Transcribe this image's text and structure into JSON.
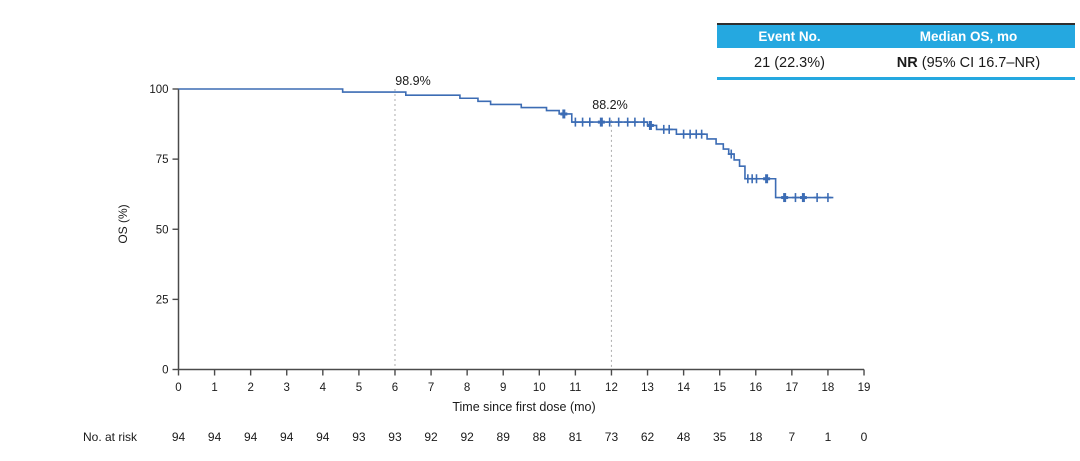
{
  "table": {
    "headers": [
      "Event No.",
      "Median OS, mo"
    ],
    "row": {
      "event_no": "21 (22.3%)",
      "median_os_prefix": "NR",
      "median_os_rest": " (95% CI 16.7–NR)"
    },
    "header_bg": "#25A8E0"
  },
  "chart_data": {
    "type": "line",
    "subtype": "kaplan-meier-step",
    "title": "",
    "xlabel": "Time since first dose (mo)",
    "ylabel": "OS (%)",
    "xlim": [
      0,
      19
    ],
    "ylim": [
      0,
      100
    ],
    "x_ticks": [
      0,
      1,
      2,
      3,
      4,
      5,
      6,
      7,
      8,
      9,
      10,
      11,
      12,
      13,
      14,
      15,
      16,
      17,
      18,
      19
    ],
    "y_ticks": [
      0,
      25,
      50,
      75,
      100
    ],
    "grid": false,
    "curve_color": "#3C6CB4",
    "series": [
      {
        "name": "OS",
        "steps": [
          [
            0,
            100
          ],
          [
            4.55,
            98.9
          ],
          [
            6.3,
            97.8
          ],
          [
            7.8,
            96.7
          ],
          [
            8.3,
            95.6
          ],
          [
            8.65,
            94.5
          ],
          [
            9.5,
            93.4
          ],
          [
            10.2,
            92.3
          ],
          [
            10.55,
            91.1
          ],
          [
            10.9,
            88.2
          ],
          [
            13.0,
            87.0
          ],
          [
            13.25,
            85.6
          ],
          [
            13.8,
            83.9
          ],
          [
            14.65,
            82.2
          ],
          [
            14.9,
            80.4
          ],
          [
            15.1,
            78.6
          ],
          [
            15.25,
            76.8
          ],
          [
            15.4,
            74.7
          ],
          [
            15.55,
            72.5
          ],
          [
            15.7,
            68.0
          ],
          [
            16.55,
            61.3
          ]
        ],
        "end_time": 18.15,
        "censor_marks": [
          [
            10.68,
            91.1,
            1
          ],
          [
            11.0,
            88.2,
            0
          ],
          [
            11.2,
            88.2,
            0
          ],
          [
            11.4,
            88.2,
            0
          ],
          [
            11.72,
            88.2,
            1
          ],
          [
            11.95,
            88.2,
            0
          ],
          [
            12.2,
            88.2,
            0
          ],
          [
            12.45,
            88.2,
            0
          ],
          [
            12.65,
            88.2,
            0
          ],
          [
            12.9,
            88.2,
            0
          ],
          [
            13.08,
            87.0,
            1
          ],
          [
            13.45,
            85.6,
            0
          ],
          [
            13.6,
            85.6,
            0
          ],
          [
            14.0,
            83.9,
            0
          ],
          [
            14.18,
            83.9,
            0
          ],
          [
            14.35,
            83.9,
            0
          ],
          [
            14.5,
            83.9,
            0
          ],
          [
            15.32,
            76.8,
            0
          ],
          [
            15.78,
            68.0,
            0
          ],
          [
            15.9,
            68.0,
            0
          ],
          [
            16.02,
            68.0,
            0
          ],
          [
            16.3,
            68.0,
            1
          ],
          [
            16.8,
            61.3,
            1
          ],
          [
            17.1,
            61.3,
            0
          ],
          [
            17.32,
            61.3,
            1
          ],
          [
            17.7,
            61.3,
            0
          ],
          [
            18.0,
            61.3,
            0
          ]
        ]
      }
    ],
    "annotations": [
      {
        "text": "98.9%",
        "at_month": 6
      },
      {
        "text": "88.2%",
        "at_month": 12
      }
    ],
    "reference_lines": [
      {
        "x": 6,
        "y_top": 100
      },
      {
        "x": 12,
        "y_top": 89
      }
    ],
    "risk_table": {
      "label": "No. at risk",
      "values": [
        94,
        94,
        94,
        94,
        94,
        93,
        93,
        92,
        92,
        89,
        88,
        81,
        73,
        62,
        48,
        35,
        18,
        7,
        1,
        0
      ]
    }
  }
}
